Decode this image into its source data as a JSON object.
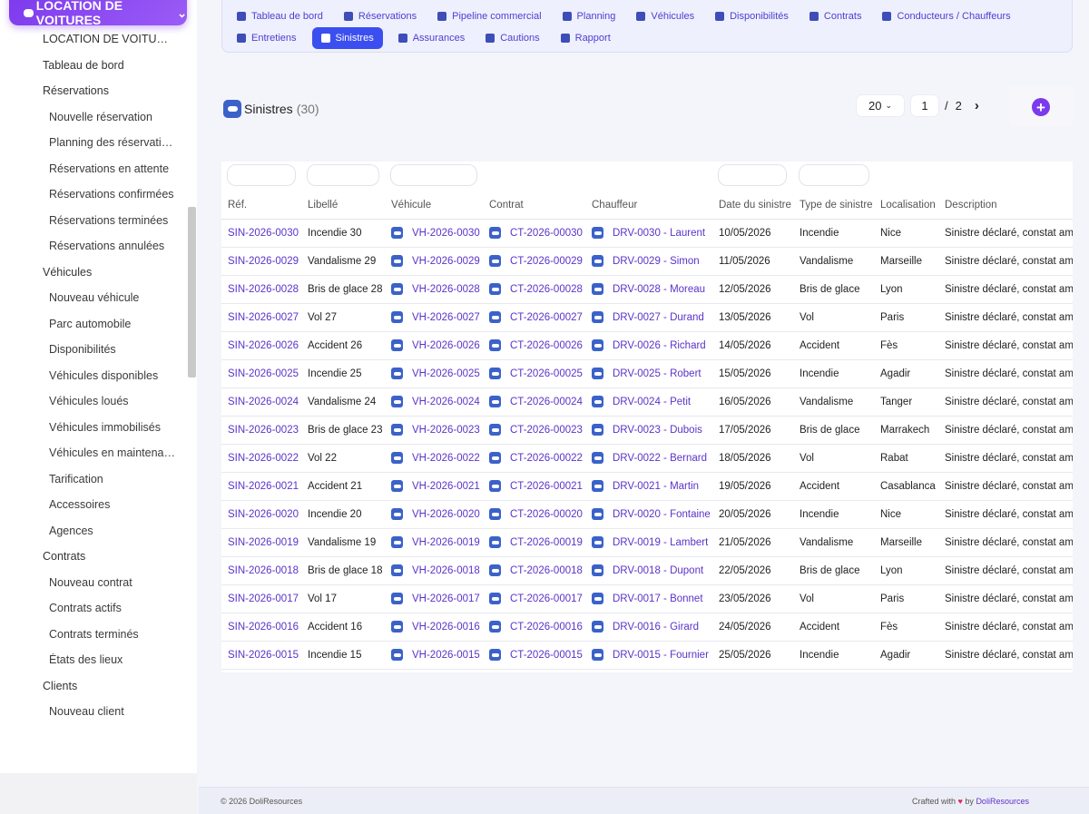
{
  "module": {
    "label": "LOCATION DE VOITURES"
  },
  "sidebar": {
    "items": [
      {
        "label": "LOCATION DE VOITURES",
        "level": 1
      },
      {
        "label": "Tableau de bord",
        "level": 1
      },
      {
        "label": "Réservations",
        "level": 1
      },
      {
        "label": "Nouvelle réservation",
        "level": 2
      },
      {
        "label": "Planning des réservations",
        "level": 2
      },
      {
        "label": "Réservations en attente",
        "level": 2
      },
      {
        "label": "Réservations confirmées",
        "level": 2
      },
      {
        "label": "Réservations terminées",
        "level": 2
      },
      {
        "label": "Réservations annulées",
        "level": 2
      },
      {
        "label": "Véhicules",
        "level": 1
      },
      {
        "label": "Nouveau véhicule",
        "level": 2
      },
      {
        "label": "Parc automobile",
        "level": 2
      },
      {
        "label": "Disponibilités",
        "level": 2
      },
      {
        "label": "Véhicules disponibles",
        "level": 2
      },
      {
        "label": "Véhicules loués",
        "level": 2
      },
      {
        "label": "Véhicules immobilisés",
        "level": 2
      },
      {
        "label": "Véhicules en maintenance",
        "level": 2
      },
      {
        "label": "Tarification",
        "level": 2
      },
      {
        "label": "Accessoires",
        "level": 2
      },
      {
        "label": "Agences",
        "level": 2
      },
      {
        "label": "Contrats",
        "level": 1
      },
      {
        "label": "Nouveau contrat",
        "level": 2
      },
      {
        "label": "Contrats actifs",
        "level": 2
      },
      {
        "label": "Contrats terminés",
        "level": 2
      },
      {
        "label": "États des lieux",
        "level": 2
      },
      {
        "label": "Clients",
        "level": 1
      },
      {
        "label": "Nouveau client",
        "level": 2
      }
    ]
  },
  "topnav": {
    "row1": [
      {
        "label": "Tableau de bord",
        "icon": "dashboard-icon"
      },
      {
        "label": "Réservations",
        "icon": "calendar-check-icon"
      },
      {
        "label": "Pipeline commercial",
        "icon": "pipeline-icon"
      },
      {
        "label": "Planning",
        "icon": "calendar-icon"
      },
      {
        "label": "Véhicules",
        "icon": "car-icon"
      },
      {
        "label": "Disponibilités",
        "icon": "grid-icon"
      },
      {
        "label": "Contrats",
        "icon": "contract-icon"
      },
      {
        "label": "Conducteurs / Chauffeurs",
        "icon": "id-card-icon"
      }
    ],
    "row2": [
      {
        "label": "Entretiens",
        "icon": "wrench-icon",
        "active": false
      },
      {
        "label": "Sinistres",
        "icon": "car-crash-icon",
        "active": true
      },
      {
        "label": "Assurances",
        "icon": "shield-icon",
        "active": false
      },
      {
        "label": "Cautions",
        "icon": "money-icon",
        "active": false
      },
      {
        "label": "Rapport",
        "icon": "chart-pie-icon",
        "active": false
      }
    ]
  },
  "list": {
    "title": "Sinistres",
    "count": "(30)",
    "limit": "20",
    "page": "1",
    "slash": "/",
    "total_pages": "2",
    "next": "›",
    "add": "+"
  },
  "table": {
    "columns": [
      "Réf.",
      "Libellé",
      "Véhicule",
      "Contrat",
      "Chauffeur",
      "Date du sinistre",
      "Type de sinistre",
      "Localisation",
      "Description"
    ],
    "rows": [
      [
        "SIN-2026-0030",
        "Incendie 30",
        "VH-2026-0030",
        "CT-2026-00030",
        "DRV-0030 - Laurent",
        "10/05/2026",
        "Incendie",
        "Nice",
        "Sinistre déclaré, constat amiable"
      ],
      [
        "SIN-2026-0029",
        "Vandalisme 29",
        "VH-2026-0029",
        "CT-2026-00029",
        "DRV-0029 - Simon",
        "11/05/2026",
        "Vandalisme",
        "Marseille",
        "Sinistre déclaré, constat amiable"
      ],
      [
        "SIN-2026-0028",
        "Bris de glace 28",
        "VH-2026-0028",
        "CT-2026-00028",
        "DRV-0028 - Moreau",
        "12/05/2026",
        "Bris de glace",
        "Lyon",
        "Sinistre déclaré, constat amiable"
      ],
      [
        "SIN-2026-0027",
        "Vol 27",
        "VH-2026-0027",
        "CT-2026-00027",
        "DRV-0027 - Durand",
        "13/05/2026",
        "Vol",
        "Paris",
        "Sinistre déclaré, constat amiable"
      ],
      [
        "SIN-2026-0026",
        "Accident 26",
        "VH-2026-0026",
        "CT-2026-00026",
        "DRV-0026 - Richard",
        "14/05/2026",
        "Accident",
        "Fès",
        "Sinistre déclaré, constat amiable"
      ],
      [
        "SIN-2026-0025",
        "Incendie 25",
        "VH-2026-0025",
        "CT-2026-00025",
        "DRV-0025 - Robert",
        "15/05/2026",
        "Incendie",
        "Agadir",
        "Sinistre déclaré, constat amiable"
      ],
      [
        "SIN-2026-0024",
        "Vandalisme 24",
        "VH-2026-0024",
        "CT-2026-00024",
        "DRV-0024 - Petit",
        "16/05/2026",
        "Vandalisme",
        "Tanger",
        "Sinistre déclaré, constat amiable"
      ],
      [
        "SIN-2026-0023",
        "Bris de glace 23",
        "VH-2026-0023",
        "CT-2026-00023",
        "DRV-0023 - Dubois",
        "17/05/2026",
        "Bris de glace",
        "Marrakech",
        "Sinistre déclaré, constat amiable"
      ],
      [
        "SIN-2026-0022",
        "Vol 22",
        "VH-2026-0022",
        "CT-2026-00022",
        "DRV-0022 - Bernard",
        "18/05/2026",
        "Vol",
        "Rabat",
        "Sinistre déclaré, constat amiable"
      ],
      [
        "SIN-2026-0021",
        "Accident 21",
        "VH-2026-0021",
        "CT-2026-00021",
        "DRV-0021 - Martin",
        "19/05/2026",
        "Accident",
        "Casablanca",
        "Sinistre déclaré, constat amiable"
      ],
      [
        "SIN-2026-0020",
        "Incendie 20",
        "VH-2026-0020",
        "CT-2026-00020",
        "DRV-0020 - Fontaine",
        "20/05/2026",
        "Incendie",
        "Nice",
        "Sinistre déclaré, constat amiable"
      ],
      [
        "SIN-2026-0019",
        "Vandalisme 19",
        "VH-2026-0019",
        "CT-2026-00019",
        "DRV-0019 - Lambert",
        "21/05/2026",
        "Vandalisme",
        "Marseille",
        "Sinistre déclaré, constat amiable"
      ],
      [
        "SIN-2026-0018",
        "Bris de glace 18",
        "VH-2026-0018",
        "CT-2026-00018",
        "DRV-0018 - Dupont",
        "22/05/2026",
        "Bris de glace",
        "Lyon",
        "Sinistre déclaré, constat amiable"
      ],
      [
        "SIN-2026-0017",
        "Vol 17",
        "VH-2026-0017",
        "CT-2026-00017",
        "DRV-0017 - Bonnet",
        "23/05/2026",
        "Vol",
        "Paris",
        "Sinistre déclaré, constat amiable"
      ],
      [
        "SIN-2026-0016",
        "Accident 16",
        "VH-2026-0016",
        "CT-2026-00016",
        "DRV-0016 - Girard",
        "24/05/2026",
        "Accident",
        "Fès",
        "Sinistre déclaré, constat amiable"
      ],
      [
        "SIN-2026-0015",
        "Incendie 15",
        "VH-2026-0015",
        "CT-2026-00015",
        "DRV-0015 - Fournier",
        "25/05/2026",
        "Incendie",
        "Agadir",
        "Sinistre déclaré, constat amiable"
      ]
    ]
  },
  "footer": {
    "copyright": "© 2026 DoliResources",
    "crafted": "Crafted with",
    "heart": "♥",
    "by": "by",
    "brand": "DoliResources"
  },
  "colors": {
    "accent": "#7c3aed",
    "link": "#5b33c9",
    "active_tab": "#3b4ff0"
  }
}
